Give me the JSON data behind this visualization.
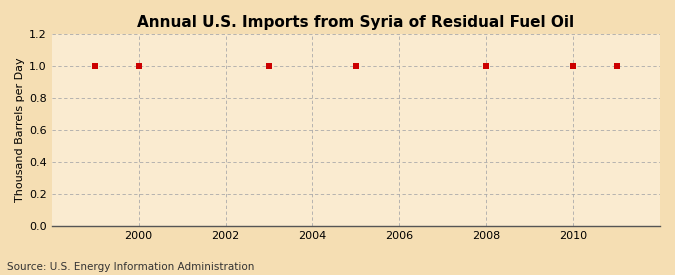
{
  "title": "Annual U.S. Imports from Syria of Residual Fuel Oil",
  "ylabel": "Thousand Barrels per Day",
  "source": "Source: U.S. Energy Information Administration",
  "years": [
    1999,
    2000,
    2003,
    2005,
    2008,
    2010,
    2011
  ],
  "values": [
    1.0,
    1.0,
    1.0,
    1.0,
    1.0,
    1.0,
    1.0
  ],
  "xlim": [
    1998.0,
    2012.0
  ],
  "ylim": [
    0.0,
    1.2
  ],
  "yticks": [
    0.0,
    0.2,
    0.4,
    0.6,
    0.8,
    1.0,
    1.2
  ],
  "xticks": [
    2000,
    2002,
    2004,
    2006,
    2008,
    2010
  ],
  "marker_color": "#cc0000",
  "marker": "s",
  "marker_size": 4,
  "grid_color": "#aaaaaa",
  "grid_linestyle": "--",
  "plot_bg_color": "#faebd0",
  "outer_bg_color": "#f5deb3",
  "title_fontsize": 11,
  "label_fontsize": 8,
  "tick_fontsize": 8,
  "source_fontsize": 7.5
}
